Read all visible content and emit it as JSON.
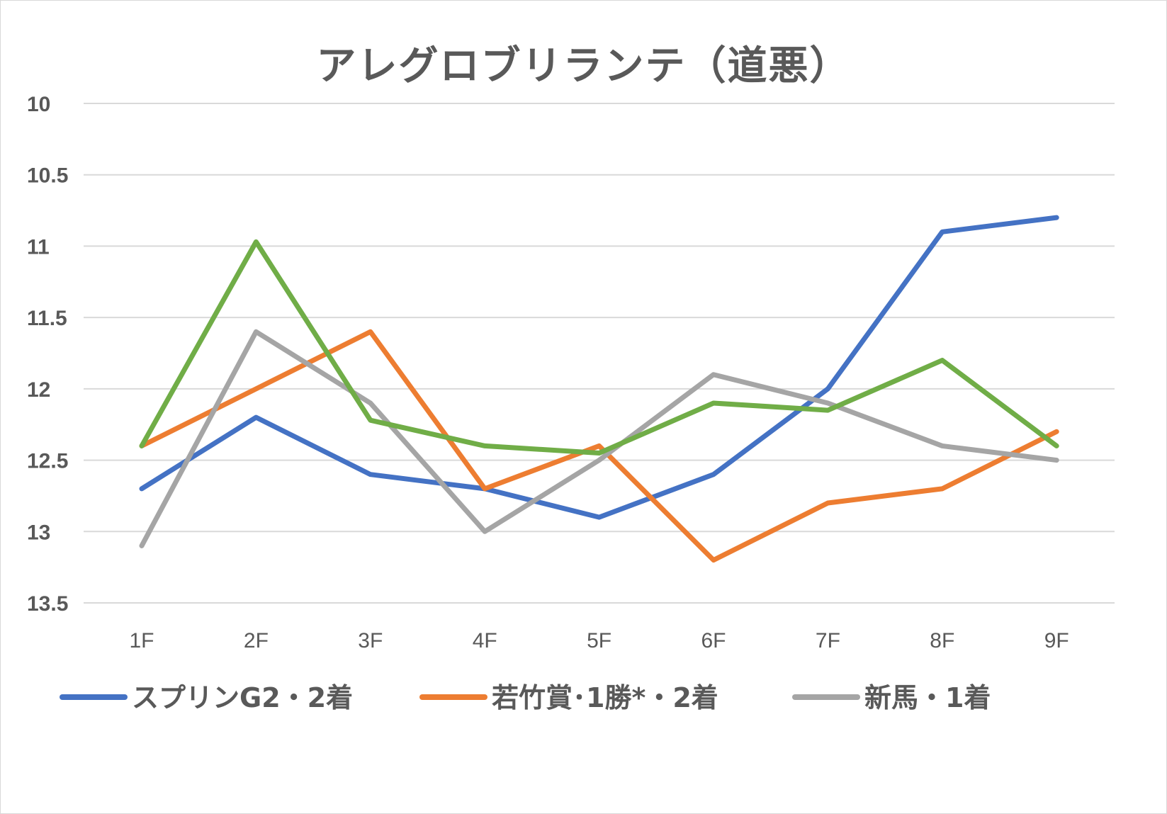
{
  "chart_data": {
    "type": "line",
    "title": "アレグロブリランテ（道悪）",
    "xlabel": "",
    "ylabel": "",
    "categories": [
      "1F",
      "2F",
      "3F",
      "4F",
      "5F",
      "6F",
      "7F",
      "8F",
      "9F"
    ],
    "ylim": [
      13.5,
      10
    ],
    "y_inverted": true,
    "yticks": [
      "10",
      "10.5",
      "11",
      "11.5",
      "12",
      "12.5",
      "13",
      "13.5"
    ],
    "grid": true,
    "legend_position": "bottom",
    "series": [
      {
        "name": "スプリンG2・2着",
        "color": "#4472c4",
        "values": [
          12.7,
          12.2,
          12.6,
          12.7,
          12.9,
          12.6,
          12.0,
          10.9,
          10.8
        ]
      },
      {
        "name": "若竹賞･1勝*・2着",
        "color": "#ed7d31",
        "values": [
          12.4,
          12.0,
          11.6,
          12.7,
          12.4,
          13.2,
          12.8,
          12.7,
          12.3
        ]
      },
      {
        "name": "新馬・1着",
        "color": "#a5a5a5",
        "values": [
          13.1,
          11.6,
          12.1,
          13.0,
          12.5,
          11.9,
          12.1,
          12.4,
          12.5
        ]
      },
      {
        "name": "",
        "color": "#70ad47",
        "values": [
          12.4,
          10.97,
          12.22,
          12.4,
          12.45,
          12.1,
          12.15,
          11.8,
          12.4
        ]
      }
    ]
  }
}
